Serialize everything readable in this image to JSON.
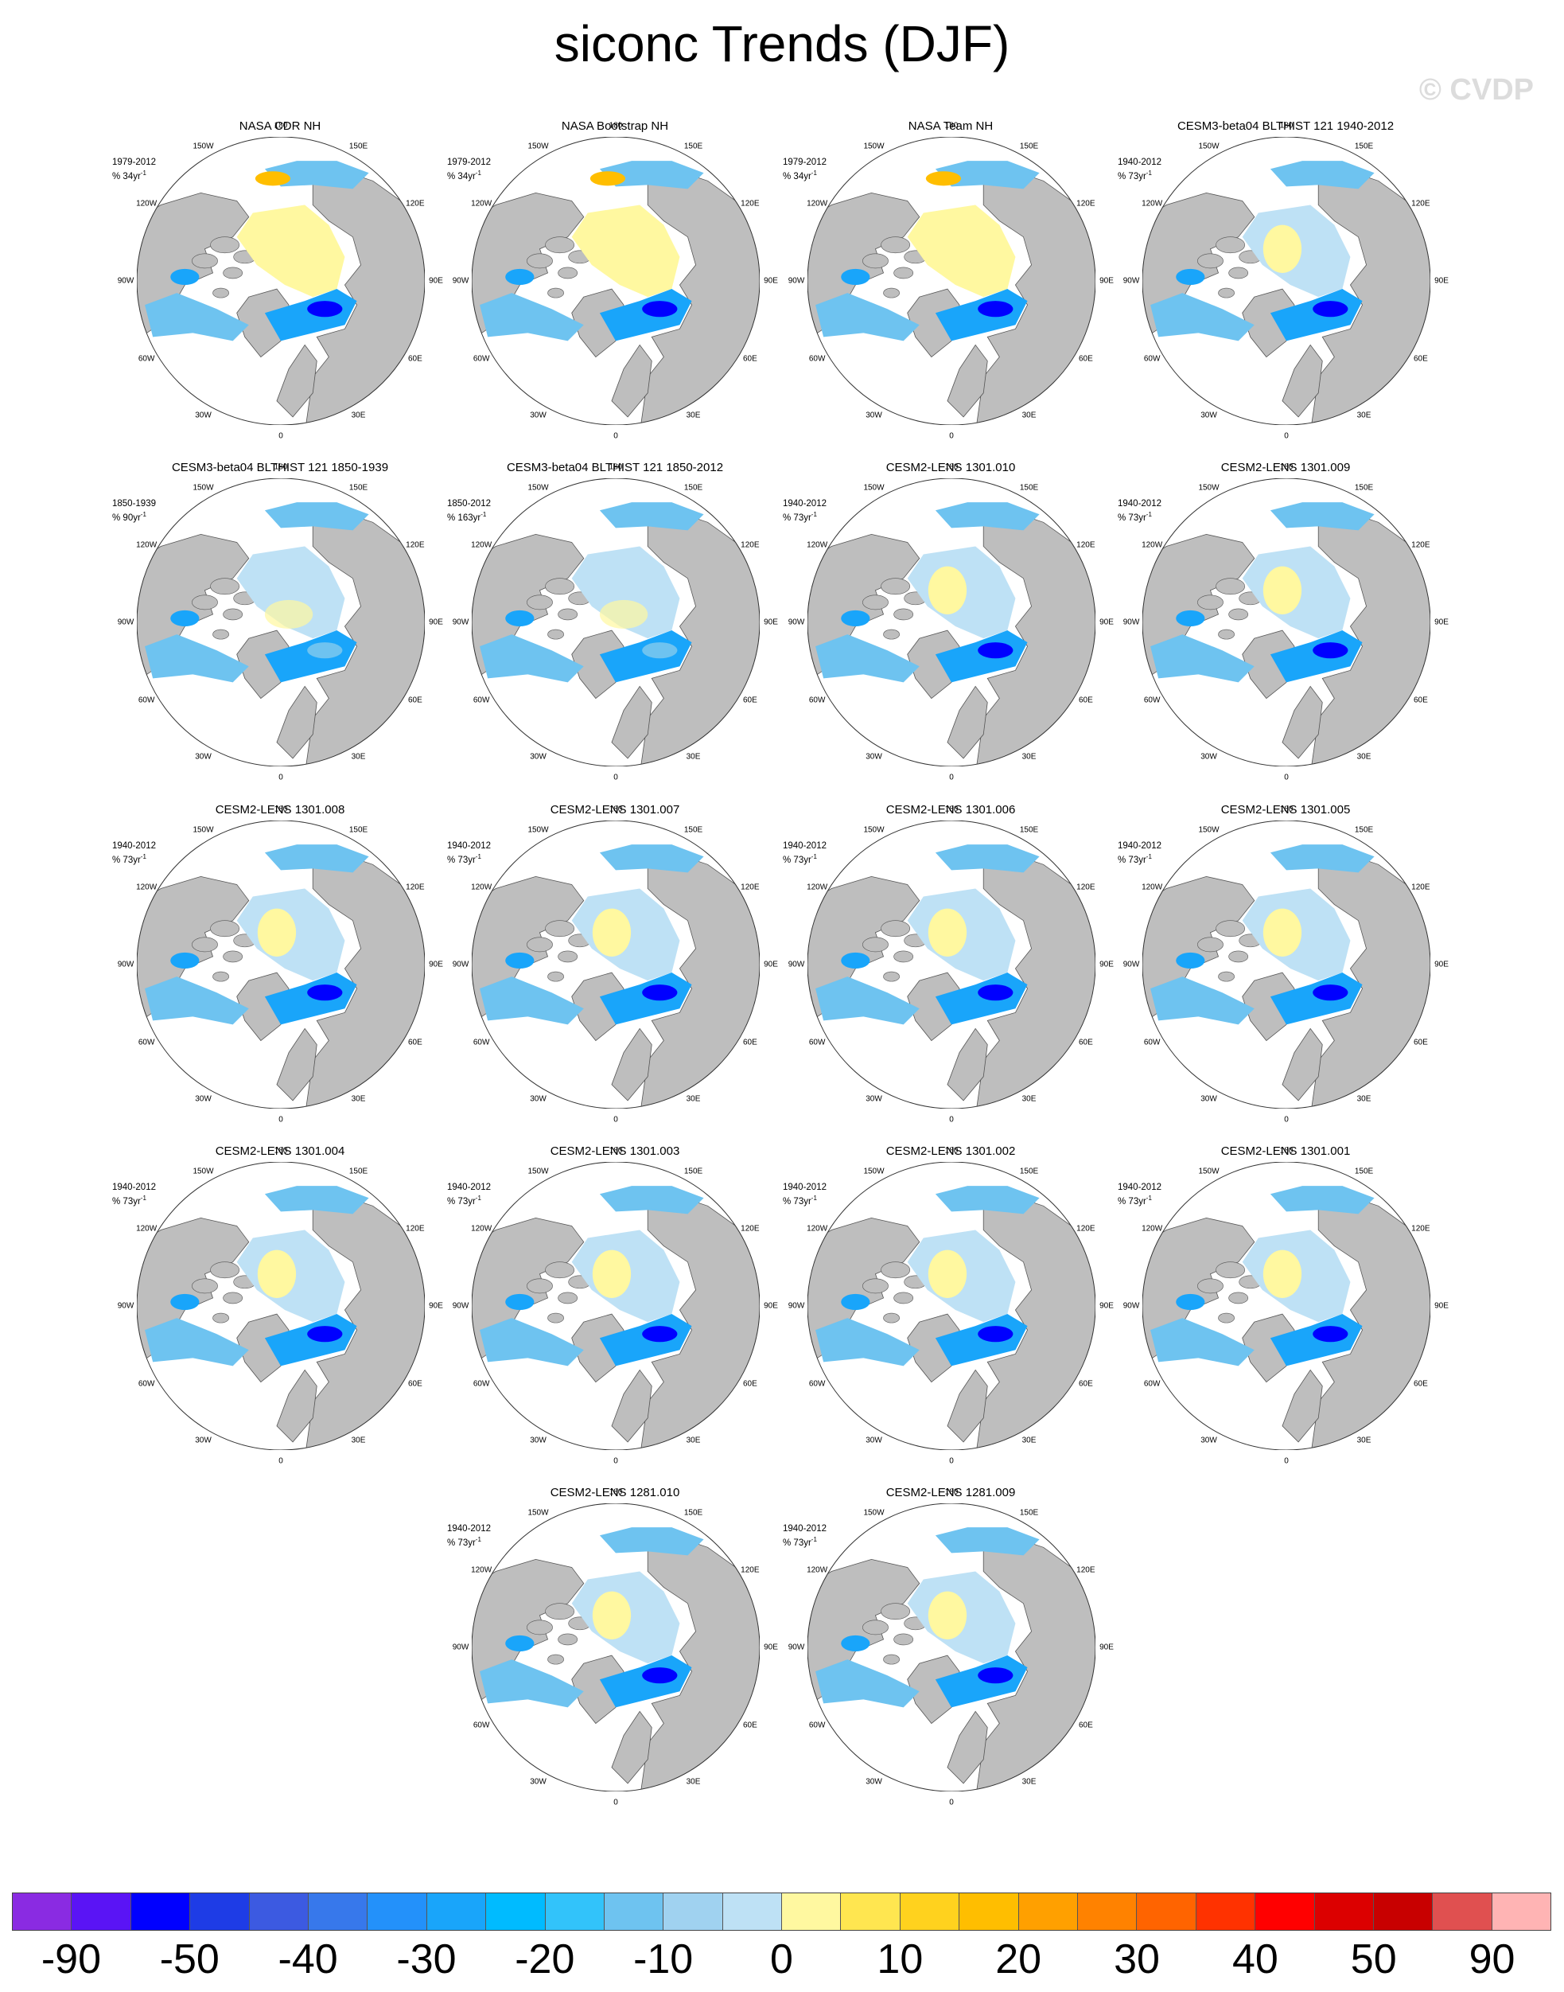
{
  "title": "siconc Trends (DJF)",
  "watermark": "© CVDP",
  "longitude_labels": [
    "180",
    "150E",
    "120E",
    "90E",
    "60E",
    "30E",
    "0",
    "30W",
    "60W",
    "90W",
    "120W",
    "150W"
  ],
  "panels": [
    {
      "title": "NASA CDR NH",
      "period": "1979-2012",
      "trend_unit": "% 34yr",
      "pattern": "obs"
    },
    {
      "title": "NASA Bootstrap NH",
      "period": "1979-2012",
      "trend_unit": "% 34yr",
      "pattern": "obs"
    },
    {
      "title": "NASA Team NH",
      "period": "1979-2012",
      "trend_unit": "% 34yr",
      "pattern": "obs"
    },
    {
      "title": "CESM3-beta04 BLTHIST 121 1940-2012",
      "period": "1940-2012",
      "trend_unit": "% 73yr",
      "pattern": "model"
    },
    {
      "title": "CESM3-beta04 BLTHIST 121 1850-1939",
      "period": "1850-1939",
      "trend_unit": "% 90yr",
      "pattern": "weak"
    },
    {
      "title": "CESM3-beta04 BLTHIST 121 1850-2012",
      "period": "1850-2012",
      "trend_unit": "% 163yr",
      "pattern": "weak"
    },
    {
      "title": "CESM2-LENS 1301.010",
      "period": "1940-2012",
      "trend_unit": "% 73yr",
      "pattern": "model"
    },
    {
      "title": "CESM2-LENS 1301.009",
      "period": "1940-2012",
      "trend_unit": "% 73yr",
      "pattern": "model"
    },
    {
      "title": "CESM2-LENS 1301.008",
      "period": "1940-2012",
      "trend_unit": "% 73yr",
      "pattern": "model"
    },
    {
      "title": "CESM2-LENS 1301.007",
      "period": "1940-2012",
      "trend_unit": "% 73yr",
      "pattern": "model"
    },
    {
      "title": "CESM2-LENS 1301.006",
      "period": "1940-2012",
      "trend_unit": "% 73yr",
      "pattern": "model"
    },
    {
      "title": "CESM2-LENS 1301.005",
      "period": "1940-2012",
      "trend_unit": "% 73yr",
      "pattern": "model"
    },
    {
      "title": "CESM2-LENS 1301.004",
      "period": "1940-2012",
      "trend_unit": "% 73yr",
      "pattern": "model"
    },
    {
      "title": "CESM2-LENS 1301.003",
      "period": "1940-2012",
      "trend_unit": "% 73yr",
      "pattern": "model"
    },
    {
      "title": "CESM2-LENS 1301.002",
      "period": "1940-2012",
      "trend_unit": "% 73yr",
      "pattern": "model"
    },
    {
      "title": "CESM2-LENS 1301.001",
      "period": "1940-2012",
      "trend_unit": "% 73yr",
      "pattern": "model"
    },
    {
      "title": "CESM2-LENS 1281.010",
      "period": "1940-2012",
      "trend_unit": "% 73yr",
      "pattern": "model"
    },
    {
      "title": "CESM2-LENS 1281.009",
      "period": "1940-2012",
      "trend_unit": "% 73yr",
      "pattern": "model"
    }
  ],
  "colorbar": {
    "colors": [
      "#8a2be2",
      "#5a14f5",
      "#0000ff",
      "#1e3ce6",
      "#3c5ae1",
      "#3778eb",
      "#2391fa",
      "#19a5fa",
      "#00bbff",
      "#32c3fa",
      "#6ec3f0",
      "#a0d2f0",
      "#bee1f5",
      "#fff8a0",
      "#ffe650",
      "#ffd21e",
      "#ffbe00",
      "#ffa000",
      "#ff8200",
      "#ff6400",
      "#ff3200",
      "#ff0000",
      "#dc0000",
      "#c80000",
      "#e05050",
      "#ffb4b4"
    ],
    "labels": [
      "-90",
      "-50",
      "-40",
      "-30",
      "-20",
      "-10",
      "0",
      "10",
      "20",
      "30",
      "40",
      "50",
      "90"
    ]
  }
}
